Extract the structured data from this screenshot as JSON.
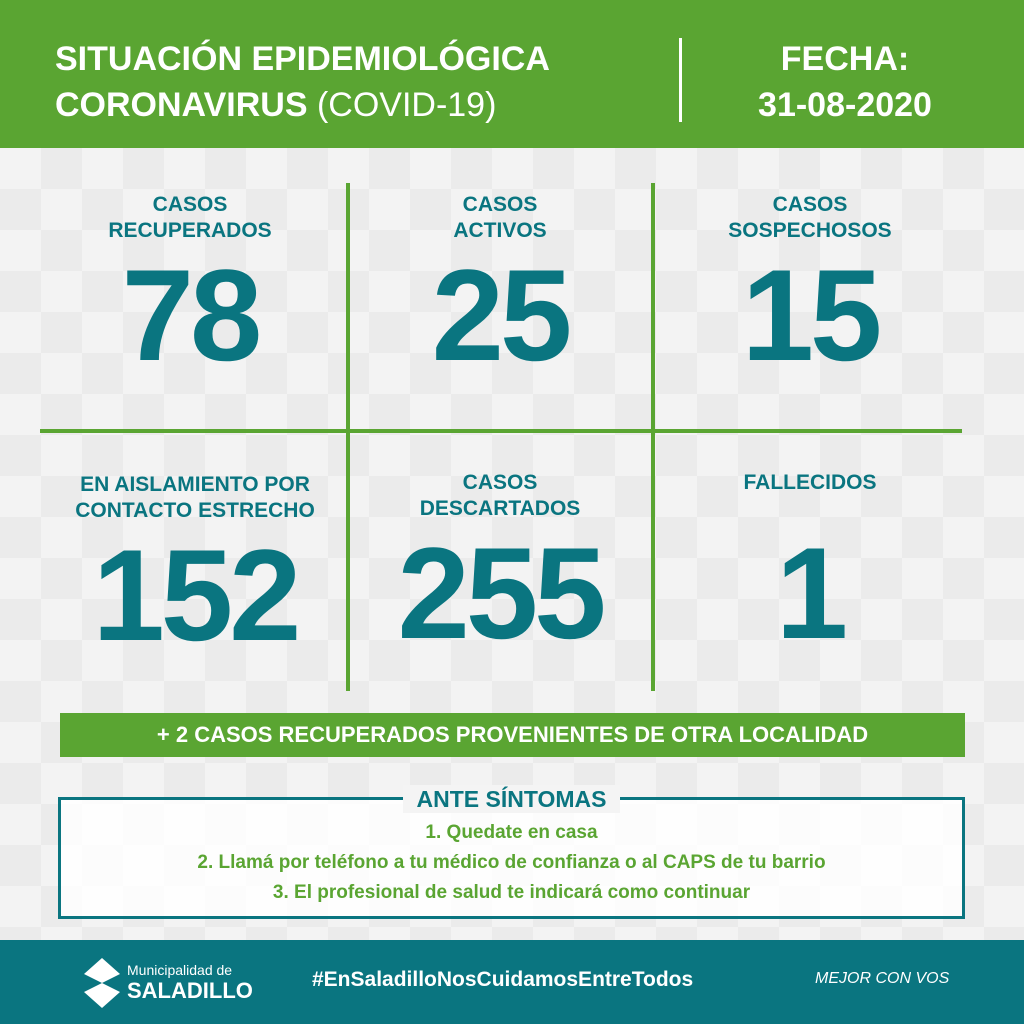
{
  "header": {
    "title_line1": "SITUACIÓN EPIDEMIOLÓGICA",
    "title_line2_bold": "CORONAVIRUS",
    "title_line2_light": "(COVID-19)",
    "date_label": "FECHA:",
    "date_value": "31-08-2020"
  },
  "stats": [
    {
      "label": "CASOS RECUPERADOS",
      "value": "78"
    },
    {
      "label": "CASOS ACTIVOS",
      "value": "25"
    },
    {
      "label": "CASOS SOSPECHOSOS",
      "value": "15"
    },
    {
      "label": "EN AISLAMIENTO POR CONTACTO ESTRECHO",
      "value": "152"
    },
    {
      "label": "CASOS DESCARTADOS",
      "value": "255"
    },
    {
      "label": "FALLECIDOS",
      "value": "1"
    }
  ],
  "banner": "+ 2  CASOS RECUPERADOS PROVENIENTES DE OTRA LOCALIDAD",
  "symptoms": {
    "title": "ANTE SÍNTOMAS",
    "steps": [
      "1. Quedate en casa",
      "2. Llamá por teléfono a tu médico de confianza o al CAPS de tu barrio",
      "3. El profesional de salud te indicará como continuar"
    ]
  },
  "footer": {
    "logo_small": "Municipalidad de",
    "logo_big": "SALADILLO",
    "hashtag": "#EnSaladilloNosCuidamosEntreTodos",
    "slogan": "MEJOR CON VOS"
  },
  "watermark": [
    "Municipalidad de",
    "SALADILLO",
    "MEJOR CON VOS",
    "#",
    "Quedate",
    "enCasa"
  ],
  "colors": {
    "green": "#5aa532",
    "teal": "#0a7580"
  }
}
